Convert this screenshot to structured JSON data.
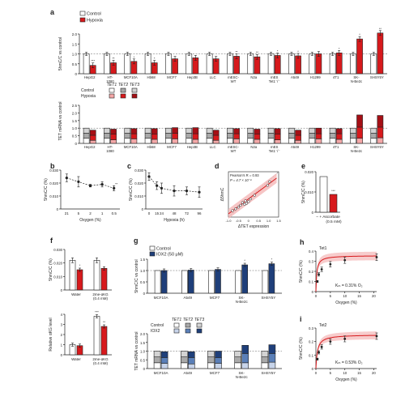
{
  "colors": {
    "control": "#ffffff",
    "hypoxia": "#d7191c",
    "tet1_control": "#ffffff",
    "tet2_control": "#a9a9a9",
    "tet3_control": "#d3d3d3",
    "tet1_hypoxia": "#f4a7a7",
    "tet2_hypoxia": "#d7191c",
    "tet3_hypoxia": "#a50f15",
    "iox2": "#1f3f7a",
    "tet1_iox2": "#c7d4ea",
    "tet2_iox2": "#5a7fb8",
    "tet3_iox2": "#1f3f7a",
    "fit_line": "#d7191c",
    "fit_band": "#f4b6b6",
    "axis": "#222222"
  },
  "panels": {
    "a": "a",
    "b": "b",
    "c": "c",
    "d": "d",
    "e": "e",
    "f": "f",
    "g": "g",
    "h": "h",
    "i": "i"
  },
  "chart_data": [
    {
      "id": "a-top",
      "type": "bar",
      "ylabel": "5hmC/C vs control",
      "ylim": [
        0,
        2.0
      ],
      "yticks": [
        "0",
        "0.5",
        "1.0",
        "1.5",
        "2.0"
      ],
      "legend": [
        "Control",
        "Hypoxia"
      ],
      "categories": [
        "HepG2",
        "HT-1080",
        "MCF10A",
        "Hb68",
        "MCF7",
        "Hep3B",
        "LLC",
        "mESC-WT",
        "N2a",
        "mES Tet1-/-",
        "A549",
        "H1299",
        "4T1",
        "SK-N-Be2c",
        "SHSY5Y"
      ],
      "category_lines": [
        [
          "HepG2"
        ],
        [
          "HT-",
          "1080"
        ],
        [
          "MCF10A"
        ],
        [
          "Hb68"
        ],
        [
          "MCF7"
        ],
        [
          "Hep3B"
        ],
        [
          "LLC"
        ],
        [
          "mESC-",
          "WT"
        ],
        [
          "N2a"
        ],
        [
          "mES",
          "Tet1⁻/⁻"
        ],
        [
          "A549"
        ],
        [
          "H1299"
        ],
        [
          "4T1"
        ],
        [
          "SK-",
          "N-Be2c"
        ],
        [
          "SHSY5Y"
        ]
      ],
      "series": [
        {
          "name": "Control",
          "values": [
            1,
            1,
            1,
            1,
            1,
            1,
            1,
            1,
            1,
            1,
            1,
            1,
            1,
            1,
            1
          ]
        },
        {
          "name": "Hypoxia",
          "values": [
            0.42,
            0.55,
            0.62,
            0.55,
            0.75,
            0.8,
            0.75,
            0.88,
            0.85,
            0.92,
            0.9,
            1.0,
            1.05,
            1.75,
            2.05
          ]
        }
      ],
      "significance": [
        "***",
        "**",
        "*",
        "*",
        "",
        "",
        "",
        "**",
        "**",
        "*",
        "*",
        "",
        "*",
        "*",
        "**"
      ]
    },
    {
      "id": "a-bottom",
      "type": "bar",
      "ylabel": "TET mRNA vs control",
      "ylim": [
        0,
        2.5
      ],
      "yticks": [
        "0",
        "0.5",
        "1.0",
        "1.5",
        "2.0",
        "2.5"
      ],
      "legend_header": [
        "TET1",
        "TET2",
        "TET3"
      ],
      "legend_rows": [
        "Control",
        "Hypoxia"
      ],
      "categories": [
        "HepG2",
        "HT-1080",
        "MCF10A",
        "Hb68",
        "MCF7",
        "Hep3B",
        "LLC",
        "mESC-WT",
        "N2a",
        "mES Tet1-/-",
        "A549",
        "H1299",
        "4T1",
        "SK-N-Be2c",
        "SHSY5Y"
      ],
      "category_lines": [
        [
          "HepG2"
        ],
        [
          "HT-",
          "1080"
        ],
        [
          "MCF10A"
        ],
        [
          "Hb68"
        ],
        [
          "MCF7"
        ],
        [
          "Hep3B"
        ],
        [
          "LLC"
        ],
        [
          "mESC-",
          "WT"
        ],
        [
          "N2a"
        ],
        [
          "mES",
          "Tet1⁻/⁻"
        ],
        [
          "A549"
        ],
        [
          "H1299"
        ],
        [
          "4T1"
        ],
        [
          "SK-",
          "N-Be2c"
        ],
        [
          "SHSY5Y"
        ]
      ],
      "series": [
        {
          "name": "TET1 Control",
          "values": [
            1,
            1,
            1,
            1,
            1,
            1,
            1,
            1,
            1,
            1,
            1,
            1,
            1,
            1,
            1
          ]
        },
        {
          "name": "TET2 Control",
          "values": [
            1,
            1,
            1,
            1,
            1,
            1,
            1,
            1,
            1,
            1,
            1,
            1,
            1,
            1,
            1
          ]
        },
        {
          "name": "TET3 Control",
          "values": [
            1,
            1,
            1,
            1,
            1,
            1,
            1,
            1,
            1,
            1,
            1,
            1,
            1,
            1,
            1
          ]
        },
        {
          "name": "TET1 Hypoxia",
          "values": [
            0.6,
            0.7,
            0.9,
            0.8,
            0.9,
            0.8,
            0.6,
            0.9,
            0.8,
            0.7,
            0.6,
            0.9,
            0.8,
            1.0,
            1.1
          ]
        },
        {
          "name": "TET2 Hypoxia",
          "values": [
            1.0,
            1.1,
            1.0,
            1.0,
            1.1,
            1.1,
            1.0,
            1.0,
            1.0,
            1.1,
            1.0,
            1.0,
            1.1,
            2.2,
            2.1
          ]
        },
        {
          "name": "TET3 Hypoxia",
          "values": [
            1.0,
            1.0,
            1.0,
            1.1,
            1.1,
            1.2,
            1.0,
            1.0,
            1.0,
            1.1,
            1.0,
            1.1,
            1.0,
            2.4,
            2.3
          ]
        }
      ]
    },
    {
      "id": "b",
      "type": "line",
      "xlabel": "Oxygen (%)",
      "ylabel": "5hmC/C (%)",
      "x": [
        "21",
        "5",
        "2",
        "1",
        "0.5"
      ],
      "y": [
        0.024,
        0.021,
        0.018,
        0.019,
        0.016
      ],
      "yerr": [
        0.003,
        0.004,
        0.001,
        0.002,
        0.002
      ],
      "ylim": [
        0,
        0.03
      ],
      "yticks": [
        "0",
        "0.010",
        "0.020",
        "0.030"
      ],
      "significance": [
        "",
        "",
        "",
        "",
        "**"
      ]
    },
    {
      "id": "c",
      "type": "line",
      "xlabel": "Hypoxia (h)",
      "ylabel": "5hmC/C (%)",
      "x": [
        0,
        15,
        24,
        48,
        72,
        96
      ],
      "xticks": [
        "0",
        "15",
        "24",
        "48",
        "72",
        "96"
      ],
      "y": [
        0.025,
        0.018,
        0.016,
        0.014,
        0.014,
        0.013
      ],
      "yerr": [
        0.003,
        0.003,
        0.004,
        0.004,
        0.003,
        0.004
      ],
      "ylim": [
        0,
        0.03
      ],
      "yticks": [
        "0",
        "0.010",
        "0.020",
        "0.030"
      ]
    },
    {
      "id": "d",
      "type": "scatter",
      "xlabel": "ΔTET expression",
      "ylabel": "Δ5hmC",
      "annotation": [
        "Pearson's R = 0.93",
        "P = 4.7 × 10⁻⁴"
      ],
      "xlim": [
        -1.0,
        1.5
      ],
      "ylim": [
        -1.0,
        1.5
      ],
      "xticks": [
        "-1.0",
        "-0.5",
        "0",
        "0.5",
        "1.0",
        "1.5"
      ],
      "yticks": [
        "-0.5",
        "0",
        "0.5",
        "1.0",
        "1.5"
      ],
      "points": [
        [
          -0.8,
          -0.65
        ],
        [
          -0.65,
          -0.55
        ],
        [
          -0.5,
          -0.45
        ],
        [
          -0.4,
          -0.35
        ],
        [
          -0.3,
          -0.2
        ],
        [
          -0.2,
          -0.3
        ],
        [
          -0.15,
          -0.1
        ],
        [
          -0.1,
          -0.25
        ],
        [
          0.0,
          -0.15
        ],
        [
          0.1,
          0.0
        ],
        [
          0.3,
          0.2
        ],
        [
          0.95,
          0.75
        ],
        [
          1.05,
          0.95
        ]
      ],
      "fit": [
        [
          -1.0,
          -0.82
        ],
        [
          1.4,
          1.15
        ]
      ]
    },
    {
      "id": "e",
      "type": "bar",
      "ylabel": "5hmC/C (%)",
      "categories": [
        "-",
        "+"
      ],
      "values": [
        0.022,
        0.011
      ],
      "ylim": [
        0,
        0.025
      ],
      "yticks": [
        "0",
        "0.010",
        "0.020"
      ],
      "xlabel_lines": [
        "− + Ascorbate",
        "(0.5 mM)"
      ],
      "significance": [
        "",
        "***"
      ]
    },
    {
      "id": "f-top",
      "type": "bar",
      "ylabel": "5hmC/C (%)",
      "categories": [
        "Water",
        "2me-αKG (0.4 mM)"
      ],
      "category_lines": [
        [
          "Water"
        ],
        [
          "2me-αKG",
          "(0.4 mM)"
        ]
      ],
      "series": [
        {
          "name": "Control",
          "values": [
            0.022,
            0.022
          ]
        },
        {
          "name": "Hypoxia",
          "values": [
            0.015,
            0.016
          ]
        }
      ],
      "ylim": [
        0,
        0.03
      ],
      "yticks": [
        "0",
        "0.010",
        "0.020",
        "0.030"
      ],
      "significance": [
        "*",
        ""
      ]
    },
    {
      "id": "f-bottom",
      "type": "bar",
      "ylabel": "Relative αKG level",
      "categories": [
        "Water",
        "2me-αKG (0.4 mM)"
      ],
      "category_lines": [
        [
          "Water"
        ],
        [
          "2me-αKG",
          "(0.4 mM)"
        ]
      ],
      "series": [
        {
          "name": "Control",
          "values": [
            1.0,
            3.8
          ]
        },
        {
          "name": "Hypoxia",
          "values": [
            0.9,
            2.8
          ]
        }
      ],
      "ylim": [
        0,
        4
      ],
      "yticks": [
        "0",
        "1",
        "2",
        "3",
        "4"
      ],
      "significance": [
        "",
        "***",
        "**"
      ]
    },
    {
      "id": "g-top",
      "type": "bar",
      "ylabel": "5hmC/C vs control",
      "legend": [
        "Control",
        "IOX2 (50 μM)"
      ],
      "categories": [
        "MCF10A",
        "A549",
        "MCF7",
        "SK-N-Be2c",
        "SHSY5Y"
      ],
      "category_lines": [
        [
          "MCF10A"
        ],
        [
          "A549"
        ],
        [
          "MCF7"
        ],
        [
          "SK-",
          "N-Be2c"
        ],
        [
          "SHSY5Y"
        ]
      ],
      "series": [
        {
          "name": "Control",
          "values": [
            1,
            1,
            1,
            1,
            1
          ]
        },
        {
          "name": "IOX2 (50 μM)",
          "values": [
            1.0,
            1.02,
            1.05,
            1.25,
            1.3
          ]
        }
      ],
      "ylim": [
        0,
        1.5
      ],
      "yticks": [
        "0",
        "0.5",
        "1.0",
        "1.5"
      ],
      "significance": [
        "",
        "",
        "",
        "*",
        "*"
      ]
    },
    {
      "id": "g-bottom",
      "type": "bar",
      "ylabel": "TET mRNA vs control",
      "legend_header": [
        "TET1",
        "TET2",
        "TET3"
      ],
      "legend_rows": [
        "Control",
        "IOX2"
      ],
      "categories": [
        "MCF10A",
        "A549",
        "MCF7",
        "SK-N-Be2c",
        "SHSY5Y"
      ],
      "category_lines": [
        [
          "MCF10A"
        ],
        [
          "A549"
        ],
        [
          "MCF7"
        ],
        [
          "SK-",
          "N-Be2c"
        ],
        [
          "SHSY5Y"
        ]
      ],
      "series": [
        {
          "name": "TET1 Control",
          "values": [
            1,
            1,
            1,
            1,
            1
          ]
        },
        {
          "name": "TET2 Control",
          "values": [
            1,
            1,
            1,
            1,
            1
          ]
        },
        {
          "name": "TET3 Control",
          "values": [
            1,
            1,
            1,
            1,
            1
          ]
        },
        {
          "name": "TET1 IOX2",
          "values": [
            0.9,
            0.8,
            0.9,
            1.0,
            1.1
          ]
        },
        {
          "name": "TET2 IOX2",
          "values": [
            1.0,
            1.1,
            1.0,
            1.6,
            1.5
          ]
        },
        {
          "name": "TET3 IOX2",
          "values": [
            1.0,
            1.0,
            1.1,
            1.4,
            1.5
          ]
        }
      ],
      "ylim": [
        0,
        2.0
      ],
      "yticks": [
        "0",
        "0.5",
        "1.0",
        "1.5",
        "2.0"
      ]
    },
    {
      "id": "h",
      "type": "line",
      "title": "Tet1",
      "xlabel": "Oxygen (%)",
      "ylabel": "5hmC/C (%)",
      "annotation": "Kₘ = 0.31% O₂",
      "x": [
        0.5,
        1,
        2,
        5,
        10,
        21
      ],
      "y": [
        0.1,
        0.17,
        0.22,
        0.27,
        0.31,
        0.34
      ],
      "ylim": [
        0,
        0.4
      ],
      "xlim": [
        0,
        21
      ],
      "yticks": [
        "0",
        "0.1",
        "0.2",
        "0.3",
        "0.4"
      ],
      "xticks": [
        "0",
        "5",
        "10",
        "15",
        "20"
      ]
    },
    {
      "id": "i",
      "type": "line",
      "title": "Tet2",
      "xlabel": "Oxygen (%)",
      "ylabel": "5hmC/C (%)",
      "annotation": "Kₘ = 0.53% O₂",
      "x": [
        0.5,
        1,
        2,
        5,
        10,
        21
      ],
      "y": [
        0.07,
        0.12,
        0.16,
        0.2,
        0.22,
        0.24
      ],
      "ylim": [
        0,
        0.3
      ],
      "xlim": [
        0,
        21
      ],
      "yticks": [
        "0",
        "0.1",
        "0.2",
        "0.3"
      ],
      "xticks": [
        "0",
        "5",
        "10",
        "15",
        "20"
      ]
    }
  ]
}
